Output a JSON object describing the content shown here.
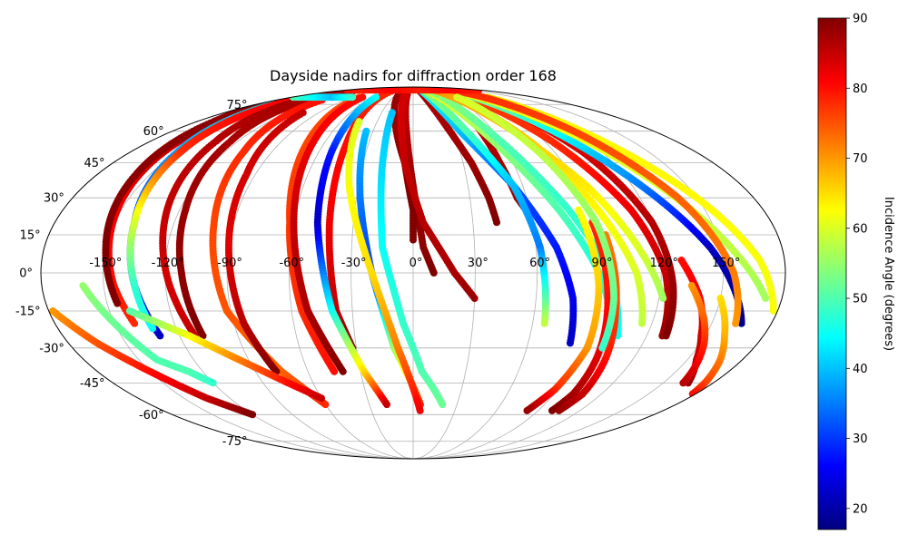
{
  "chart_data": {
    "type": "scatter",
    "title": "Dayside nadirs for diffraction order 168",
    "projection": "mollweide",
    "grid": true,
    "x_tick_labels": [
      "-150°",
      "-120°",
      "-90°",
      "-60°",
      "-30°",
      "0°",
      "30°",
      "60°",
      "90°",
      "120°",
      "150°"
    ],
    "x_tick_values": [
      -150,
      -120,
      -90,
      -60,
      -30,
      0,
      30,
      60,
      90,
      120,
      150
    ],
    "y_tick_labels": [
      "-75°",
      "-60°",
      "-45°",
      "-30°",
      "-15°",
      "0°",
      "15°",
      "30°",
      "45°",
      "60°",
      "75°"
    ],
    "y_tick_values": [
      -75,
      -60,
      -45,
      -30,
      -15,
      0,
      15,
      30,
      45,
      60,
      75
    ],
    "colorbar": {
      "label": "Incidence Angle (degrees)",
      "colormap": "jet",
      "range": [
        17,
        90
      ],
      "ticks": [
        20,
        30,
        40,
        50,
        60,
        70,
        80,
        90
      ],
      "tick_labels": [
        "20",
        "30",
        "40",
        "50",
        "60",
        "70",
        "80",
        "90"
      ]
    },
    "series": [
      {
        "lon": [
          -170,
          -160,
          -152,
          -145,
          -140
        ],
        "lat": [
          80,
          55,
          25,
          -5,
          -20
        ],
        "inc": [
          88,
          85,
          82,
          80,
          78
        ]
      },
      {
        "lon": [
          -175,
          -166,
          -158,
          -150,
          -145
        ],
        "lat": [
          82,
          65,
          40,
          10,
          -12
        ],
        "inc": [
          89,
          89,
          89,
          90,
          90
        ]
      },
      {
        "lon": [
          -165,
          -150,
          -140,
          -135,
          -130
        ],
        "lat": [
          85,
          50,
          20,
          -5,
          -25
        ],
        "inc": [
          45,
          38,
          30,
          25,
          22
        ]
      },
      {
        "lon": [
          -160,
          -148,
          -140,
          -135,
          -132
        ],
        "lat": [
          80,
          50,
          20,
          -5,
          -22
        ],
        "inc": [
          82,
          78,
          60,
          48,
          45
        ]
      },
      {
        "lon": [
          -150,
          -135,
          -125,
          -118,
          -112
        ],
        "lat": [
          85,
          55,
          20,
          -5,
          -25
        ],
        "inc": [
          88,
          86,
          85,
          84,
          85
        ]
      },
      {
        "lon": [
          -140,
          -125,
          -117,
          -112,
          -108
        ],
        "lat": [
          85,
          55,
          25,
          0,
          -25
        ],
        "inc": [
          87,
          87,
          88,
          89,
          90
        ]
      },
      {
        "lon": [
          -120,
          -108,
          -100,
          -92,
          -75,
          -60
        ],
        "lat": [
          78,
          50,
          20,
          -15,
          -40,
          -55
        ],
        "inc": [
          80,
          78,
          76,
          75,
          74,
          78
        ]
      },
      {
        "lon": [
          -105,
          -95,
          -90,
          -85,
          -78
        ],
        "lat": [
          70,
          40,
          10,
          -20,
          -40
        ],
        "inc": [
          85,
          84,
          83,
          86,
          90
        ]
      },
      {
        "lon": [
          -80,
          -72,
          -62,
          -55,
          -45
        ],
        "lat": [
          80,
          55,
          20,
          -15,
          -40
        ],
        "inc": [
          76,
          76,
          77,
          78,
          80
        ]
      },
      {
        "lon": [
          -75,
          -68,
          -60,
          -52,
          -40
        ],
        "lat": [
          80,
          55,
          20,
          -15,
          -40
        ],
        "inc": [
          80,
          82,
          85,
          87,
          90
        ]
      },
      {
        "lon": [
          -50,
          -45,
          -42,
          -38,
          -32
        ],
        "lat": [
          85,
          55,
          20,
          -15,
          -30
        ],
        "inc": [
          78,
          80,
          82,
          85,
          90
        ]
      },
      {
        "lon": [
          -55,
          -52,
          -48,
          -40,
          -28,
          -18
        ],
        "lat": [
          80,
          50,
          20,
          -15,
          -40,
          -55
        ],
        "inc": [
          45,
          28,
          22,
          45,
          65,
          85
        ]
      },
      {
        "lon": [
          -140,
          -115,
          -95,
          -75,
          -60
        ],
        "lat": [
          -15,
          -25,
          -35,
          -45,
          -52
        ],
        "inc": [
          50,
          62,
          72,
          80,
          85
        ]
      },
      {
        "lon": [
          -160,
          -150,
          -140,
          -128,
          -120
        ],
        "lat": [
          -5,
          -20,
          -35,
          -40,
          -45
        ],
        "inc": [
          55,
          52,
          50,
          50,
          48
        ]
      },
      {
        "lon": [
          -178,
          -165,
          -150,
          -135,
          -120
        ],
        "lat": [
          -15,
          -28,
          -40,
          -52,
          -60
        ],
        "inc": [
          70,
          75,
          80,
          85,
          90
        ]
      },
      {
        "lon": [
          -10,
          -5,
          0,
          5,
          10
        ],
        "lat": [
          82,
          60,
          35,
          10,
          0
        ],
        "inc": [
          85,
          86,
          88,
          89,
          90
        ]
      },
      {
        "lon": [
          -25,
          -15,
          -5,
          0,
          0
        ],
        "lat": [
          82,
          65,
          45,
          25,
          13
        ],
        "inc": [
          88,
          88,
          89,
          90,
          90
        ]
      },
      {
        "lon": [
          -15,
          -10,
          -5,
          5,
          20,
          30
        ],
        "lat": [
          84,
          65,
          45,
          20,
          0,
          -10
        ],
        "inc": [
          84,
          84,
          85,
          86,
          87,
          88
        ]
      },
      {
        "lon": [
          15,
          25,
          35,
          40,
          42
        ],
        "lat": [
          85,
          65,
          45,
          30,
          20
        ],
        "inc": [
          86,
          87,
          88,
          89,
          90
        ]
      },
      {
        "lon": [
          45,
          50,
          52,
          55,
          58
        ],
        "lat": [
          85,
          65,
          45,
          30,
          25
        ],
        "inc": [
          86,
          86,
          87,
          88,
          90
        ]
      },
      {
        "lon": [
          -20,
          -18,
          -15,
          -5,
          5,
          20
        ],
        "lat": [
          70,
          40,
          10,
          -20,
          -40,
          -55
        ],
        "inc": [
          40,
          42,
          45,
          48,
          50,
          52
        ]
      },
      {
        "lon": [
          -35,
          -28,
          -20,
          -10,
          5
        ],
        "lat": [
          60,
          30,
          0,
          -30,
          -55
        ],
        "inc": [
          40,
          35,
          30,
          55,
          78
        ]
      },
      {
        "lon": [
          -45,
          -35,
          -20,
          -8,
          5
        ],
        "lat": [
          65,
          35,
          0,
          -30,
          -58
        ],
        "inc": [
          60,
          62,
          65,
          72,
          82
        ]
      },
      {
        "lon": [
          20,
          35,
          55,
          70,
          78,
          82
        ],
        "lat": [
          85,
          60,
          35,
          10,
          -10,
          -28
        ],
        "inc": [
          45,
          40,
          32,
          28,
          25,
          22
        ]
      },
      {
        "lon": [
          25,
          40,
          55,
          62,
          66
        ],
        "lat": [
          85,
          60,
          35,
          10,
          -20
        ],
        "inc": [
          55,
          50,
          40,
          35,
          58
        ]
      },
      {
        "lon": [
          35,
          55,
          75,
          90,
          102
        ],
        "lat": [
          85,
          55,
          25,
          0,
          -25
        ],
        "inc": [
          62,
          55,
          50,
          46,
          45
        ]
      },
      {
        "lon": [
          40,
          60,
          80,
          95,
          105
        ],
        "lat": [
          85,
          55,
          25,
          0,
          -25
        ],
        "inc": [
          55,
          50,
          48,
          46,
          45
        ]
      },
      {
        "lon": [
          60,
          80,
          95,
          108,
          115
        ],
        "lat": [
          85,
          55,
          25,
          0,
          -20
        ],
        "inc": [
          70,
          66,
          63,
          60,
          58
        ]
      },
      {
        "lon": [
          75,
          95,
          112,
          122,
          128
        ],
        "lat": [
          85,
          55,
          25,
          0,
          -25
        ],
        "inc": [
          76,
          78,
          82,
          85,
          88
        ]
      },
      {
        "lon": [
          88,
          108,
          120,
          126,
          130
        ],
        "lat": [
          85,
          50,
          20,
          -5,
          -25
        ],
        "inc": [
          82,
          84,
          86,
          88,
          90
        ]
      },
      {
        "lon": [
          90,
          95,
          100,
          102,
          100
        ],
        "lat": [
          20,
          -10,
          -35,
          -50,
          -58
        ],
        "inc": [
          78,
          80,
          83,
          87,
          90
        ]
      },
      {
        "lon": [
          95,
          100,
          105,
          108,
          105
        ],
        "lat": [
          15,
          -15,
          -35,
          -50,
          -58
        ],
        "inc": [
          72,
          76,
          80,
          85,
          88
        ]
      },
      {
        "lon": [
          85,
          90,
          92,
          88,
          82
        ],
        "lat": [
          25,
          -5,
          -30,
          -48,
          -58
        ],
        "inc": [
          62,
          66,
          70,
          78,
          88
        ]
      },
      {
        "lon": [
          85,
          105,
          125,
          145,
          165
        ],
        "lat": [
          85,
          60,
          35,
          10,
          -20
        ],
        "inc": [
          55,
          45,
          35,
          22,
          18
        ]
      },
      {
        "lon": [
          95,
          115,
          135,
          155,
          172
        ],
        "lat": [
          82,
          60,
          35,
          10,
          -10
        ],
        "inc": [
          62,
          62,
          60,
          58,
          56
        ]
      },
      {
        "lon": [
          110,
          130,
          150,
          168,
          178
        ],
        "lat": [
          80,
          55,
          30,
          5,
          -15
        ],
        "inc": [
          64,
          63,
          63,
          62,
          62
        ]
      },
      {
        "lon": [
          100,
          120,
          140,
          155,
          162
        ],
        "lat": [
          85,
          60,
          30,
          0,
          -20
        ],
        "inc": [
          78,
          76,
          74,
          72,
          70
        ]
      },
      {
        "lon": [
          55,
          75,
          95,
          110,
          122
        ],
        "lat": [
          85,
          60,
          35,
          10,
          -10
        ],
        "inc": [
          70,
          67,
          64,
          60,
          56
        ]
      },
      {
        "lon": [
          65,
          80,
          92,
          98,
          100
        ],
        "lat": [
          80,
          50,
          20,
          -10,
          -30
        ],
        "inc": [
          60,
          58,
          55,
          52,
          48
        ]
      },
      {
        "lon": [
          130,
          140,
          148,
          155,
          165
        ],
        "lat": [
          5,
          -10,
          -25,
          -35,
          -45
        ],
        "inc": [
          80,
          82,
          84,
          86,
          88
        ]
      },
      {
        "lon": [
          150,
          160,
          168,
          175,
          178
        ],
        "lat": [
          -10,
          -25,
          -35,
          -45,
          -50
        ],
        "inc": [
          65,
          68,
          72,
          76,
          80
        ]
      },
      {
        "lon": [
          135,
          145,
          152,
          158,
          162
        ],
        "lat": [
          -5,
          -18,
          -28,
          -38,
          -45
        ],
        "inc": [
          70,
          74,
          78,
          82,
          86
        ]
      },
      {
        "lon": [
          -178,
          -140,
          -100,
          -60,
          -20,
          20,
          60,
          100,
          140,
          178
        ],
        "lat": [
          86,
          86,
          86,
          86,
          86,
          86,
          86,
          86,
          86,
          86
        ],
        "inc": [
          80,
          79,
          80,
          81,
          80,
          79,
          80,
          81,
          80,
          79
        ]
      },
      {
        "lon": [
          -178,
          -150,
          -120,
          -90
        ],
        "lat": [
          80,
          80,
          80,
          80
        ],
        "inc": [
          50,
          45,
          40,
          48
        ]
      }
    ]
  }
}
